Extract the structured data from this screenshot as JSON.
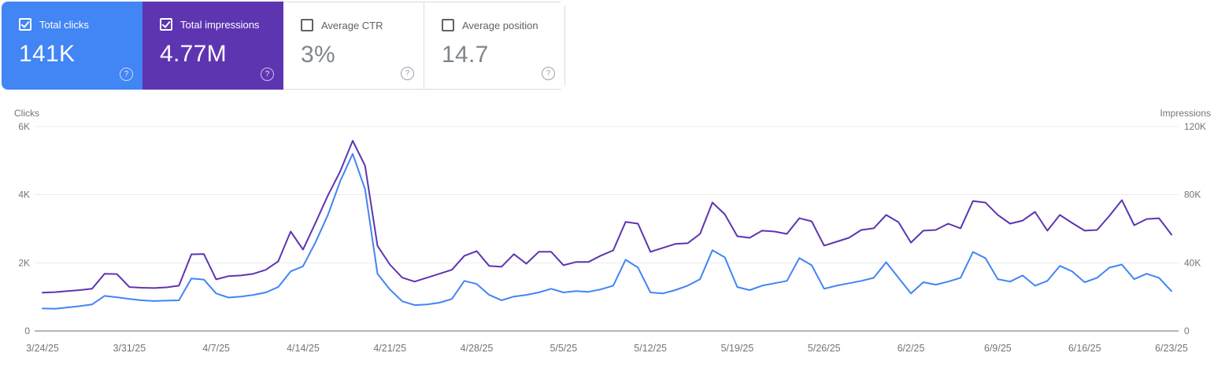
{
  "cards": [
    {
      "label": "Total clicks",
      "value": "141K",
      "selected": true,
      "color": "#4285f4"
    },
    {
      "label": "Total impressions",
      "value": "4.77M",
      "selected": true,
      "color": "#5e35b1"
    },
    {
      "label": "Average CTR",
      "value": "3%",
      "selected": false,
      "color": "#ffffff"
    },
    {
      "label": "Average position",
      "value": "14.7",
      "selected": false,
      "color": "#ffffff"
    }
  ],
  "chart_data": {
    "type": "line",
    "left_axis_title": "Clicks",
    "right_axis_title": "Impressions",
    "left_max": 6000,
    "right_max": 120000,
    "grid": "horizontal-only",
    "legend_position": "none (cards act as legend)",
    "y_ticks": [
      {
        "value": 0,
        "left_label": "0",
        "right_label": "0"
      },
      {
        "value": 2000,
        "left_label": "2K",
        "right_label": "40K"
      },
      {
        "value": 4000,
        "left_label": "4K",
        "right_label": "80K"
      },
      {
        "value": 6000,
        "left_label": "6K",
        "right_label": "120K"
      }
    ],
    "x_tick_labels": [
      "3/24/25",
      "3/31/25",
      "4/7/25",
      "4/14/25",
      "4/21/25",
      "4/28/25",
      "5/5/25",
      "5/12/25",
      "5/19/25",
      "5/26/25",
      "6/2/25",
      "6/9/25",
      "6/16/25",
      "6/23/25"
    ],
    "x_tick_every_n_points": 7,
    "series": [
      {
        "name": "Clicks",
        "color": "#4285f4",
        "axis": "left",
        "max": 6000,
        "values": [
          660,
          650,
          690,
          730,
          780,
          1030,
          990,
          940,
          900,
          880,
          890,
          900,
          1540,
          1510,
          1100,
          980,
          1010,
          1060,
          1130,
          1290,
          1750,
          1900,
          2600,
          3400,
          4400,
          5200,
          4160,
          1680,
          1220,
          870,
          760,
          780,
          830,
          940,
          1470,
          1380,
          1060,
          900,
          1010,
          1060,
          1130,
          1240,
          1130,
          1170,
          1150,
          1220,
          1330,
          2090,
          1860,
          1130,
          1100,
          1200,
          1330,
          1520,
          2370,
          2160,
          1290,
          1200,
          1330,
          1400,
          1470,
          2140,
          1930,
          1240,
          1330,
          1400,
          1470,
          1560,
          2020,
          1560,
          1100,
          1430,
          1360,
          1450,
          1560,
          2320,
          2140,
          1520,
          1450,
          1630,
          1330,
          1470,
          1910,
          1750,
          1430,
          1560,
          1860,
          1950,
          1520,
          1680,
          1560,
          1170
        ]
      },
      {
        "name": "Impressions",
        "color": "#5e35b1",
        "axis": "right",
        "max": 120000,
        "values": [
          22500,
          22800,
          23400,
          24000,
          24800,
          33600,
          33400,
          25800,
          25400,
          25200,
          25600,
          26600,
          45000,
          45200,
          30300,
          32200,
          32600,
          33600,
          35900,
          40900,
          58400,
          47800,
          63400,
          79500,
          93800,
          111700,
          97000,
          50000,
          39000,
          31300,
          29000,
          31300,
          33600,
          35900,
          44100,
          46900,
          38200,
          37700,
          45100,
          39500,
          46500,
          46500,
          38600,
          40500,
          40500,
          44200,
          47300,
          64000,
          63000,
          46500,
          48800,
          51100,
          51500,
          57000,
          75400,
          68500,
          55600,
          54700,
          58900,
          58400,
          57000,
          66200,
          64400,
          50100,
          52400,
          54700,
          59300,
          60300,
          68100,
          63900,
          51900,
          58900,
          59300,
          63000,
          60300,
          76300,
          75400,
          68100,
          63000,
          64800,
          69900,
          58900,
          68100,
          63400,
          58900,
          59300,
          67600,
          76800,
          62100,
          65700,
          66200,
          56600
        ]
      }
    ]
  }
}
